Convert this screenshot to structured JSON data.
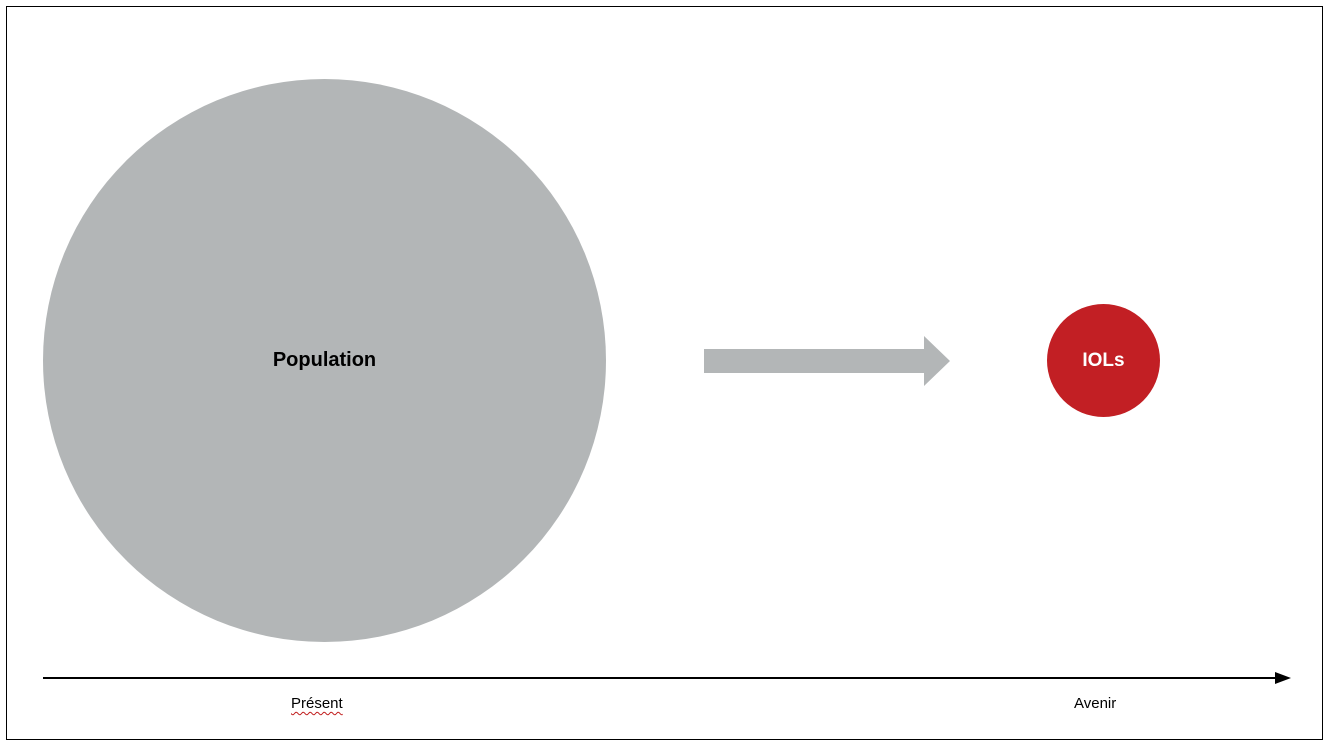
{
  "diagram": {
    "source": {
      "label": "Population",
      "color": "#b3b6b7"
    },
    "target": {
      "label": "IOLs",
      "color": "#c21f24"
    },
    "arrow": {
      "color": "#b3b6b7"
    },
    "timeline": {
      "start_label": "Présent",
      "end_label": "Avenir",
      "color": "#000000"
    }
  }
}
